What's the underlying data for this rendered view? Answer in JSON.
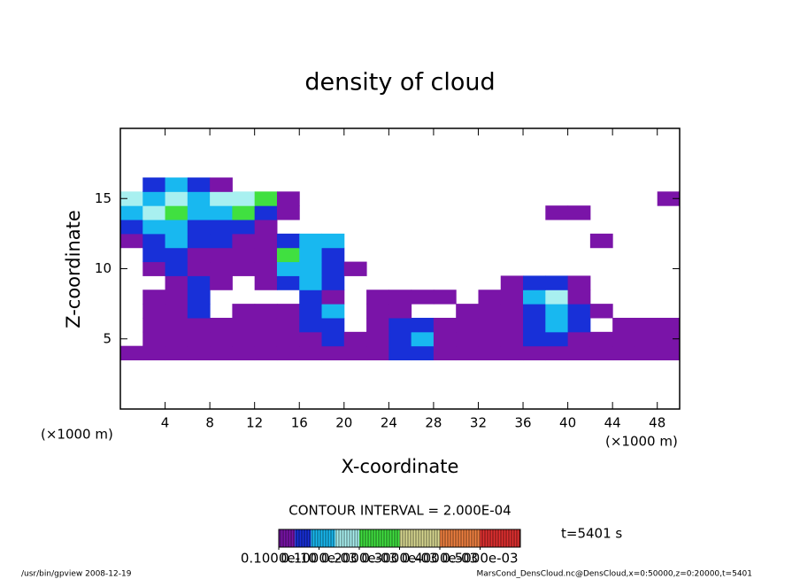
{
  "chart_data": {
    "type": "heatmap",
    "title": "density of cloud",
    "xlabel": "X-coordinate",
    "ylabel": "Z-coordinate",
    "xunit": "(×1000 m)",
    "yunit": "(×1000 m)",
    "contour_note": "CONTOUR INTERVAL = 2.000E-04",
    "time_label": "t=5401 s",
    "footer_left": "/usr/bin/gpview   2008-12-19",
    "footer_right": "MarsCond_DensCloud.nc@DensCloud,x=0:50000,z=0:20000,t=5401",
    "xlim": [
      0,
      50
    ],
    "ylim": [
      0,
      20
    ],
    "xticks": [
      4,
      8,
      12,
      16,
      20,
      24,
      28,
      32,
      36,
      40,
      44,
      48
    ],
    "yticks": [
      5,
      10,
      15
    ],
    "x": [
      1,
      3,
      5,
      7,
      9,
      11,
      13,
      15,
      17,
      19,
      21,
      23,
      25,
      27,
      29,
      31,
      33,
      35,
      37,
      39,
      41,
      43,
      45,
      47,
      49
    ],
    "y": [
      4,
      5,
      6,
      7,
      8,
      9,
      10,
      11,
      12,
      13,
      14,
      15,
      16
    ],
    "cell_size": [
      2,
      1
    ],
    "values": [
      [
        2e-05,
        2e-05,
        2e-05,
        2e-05,
        2e-05,
        2e-05,
        2e-05,
        2e-05,
        2e-05,
        2e-05,
        2e-05,
        2e-05,
        6e-05,
        6e-05,
        2e-05,
        2e-05,
        2e-05,
        2e-05,
        2e-05,
        2e-05,
        2e-05,
        2e-05,
        2e-05,
        2e-05,
        2e-05
      ],
      [
        null,
        2e-05,
        2e-05,
        2e-05,
        2e-05,
        2e-05,
        2e-05,
        2e-05,
        2e-05,
        6e-05,
        2e-05,
        2e-05,
        6e-05,
        0.00012,
        2e-05,
        2e-05,
        2e-05,
        2e-05,
        6e-05,
        6e-05,
        2e-05,
        2e-05,
        2e-05,
        2e-05,
        2e-05
      ],
      [
        null,
        2e-05,
        2e-05,
        2e-05,
        2e-05,
        2e-05,
        2e-05,
        2e-05,
        6e-05,
        6e-05,
        null,
        2e-05,
        6e-05,
        6e-05,
        2e-05,
        2e-05,
        2e-05,
        2e-05,
        6e-05,
        0.00012,
        6e-05,
        null,
        2e-05,
        2e-05,
        2e-05
      ],
      [
        null,
        2e-05,
        2e-05,
        6e-05,
        null,
        2e-05,
        2e-05,
        2e-05,
        6e-05,
        0.00012,
        null,
        2e-05,
        2e-05,
        null,
        null,
        2e-05,
        2e-05,
        2e-05,
        6e-05,
        0.00012,
        6e-05,
        2e-05,
        null,
        null,
        null
      ],
      [
        null,
        2e-05,
        2e-05,
        6e-05,
        null,
        null,
        null,
        null,
        6e-05,
        2e-05,
        null,
        2e-05,
        2e-05,
        2e-05,
        2e-05,
        null,
        2e-05,
        2e-05,
        0.00012,
        0.00016,
        2e-05,
        null,
        null,
        null,
        null
      ],
      [
        null,
        null,
        2e-05,
        6e-05,
        2e-05,
        null,
        2e-05,
        6e-05,
        0.00012,
        6e-05,
        null,
        null,
        null,
        null,
        null,
        null,
        null,
        2e-05,
        6e-05,
        6e-05,
        2e-05,
        null,
        null,
        null,
        null
      ],
      [
        null,
        2e-05,
        6e-05,
        2e-05,
        2e-05,
        2e-05,
        2e-05,
        0.00012,
        0.00012,
        6e-05,
        2e-05,
        null,
        null,
        null,
        null,
        null,
        null,
        null,
        null,
        null,
        null,
        null,
        null,
        null,
        null
      ],
      [
        null,
        6e-05,
        6e-05,
        2e-05,
        2e-05,
        2e-05,
        2e-05,
        0.00022,
        0.00012,
        6e-05,
        null,
        null,
        null,
        null,
        null,
        null,
        null,
        null,
        null,
        null,
        null,
        null,
        null,
        null,
        null
      ],
      [
        2e-05,
        6e-05,
        0.00012,
        6e-05,
        6e-05,
        2e-05,
        2e-05,
        6e-05,
        0.00012,
        0.00012,
        null,
        null,
        null,
        null,
        null,
        null,
        null,
        null,
        null,
        null,
        null,
        2e-05,
        null,
        null,
        null
      ],
      [
        6e-05,
        0.00012,
        0.00012,
        6e-05,
        6e-05,
        6e-05,
        2e-05,
        null,
        null,
        null,
        null,
        null,
        null,
        null,
        null,
        null,
        null,
        null,
        null,
        null,
        null,
        null,
        null,
        null,
        null
      ],
      [
        0.00012,
        0.00016,
        0.00022,
        0.00012,
        0.00012,
        0.00022,
        6e-05,
        2e-05,
        null,
        null,
        null,
        null,
        null,
        null,
        null,
        null,
        null,
        null,
        null,
        2e-05,
        2e-05,
        null,
        null,
        null,
        null
      ],
      [
        0.00016,
        0.00012,
        0.00016,
        0.00012,
        0.00016,
        0.00016,
        0.00022,
        2e-05,
        null,
        null,
        null,
        null,
        null,
        null,
        null,
        null,
        null,
        null,
        null,
        null,
        null,
        null,
        null,
        null,
        2e-05
      ],
      [
        null,
        6e-05,
        0.00012,
        6e-05,
        2e-05,
        null,
        null,
        null,
        null,
        null,
        null,
        null,
        null,
        null,
        null,
        null,
        null,
        null,
        null,
        null,
        null,
        null,
        null,
        null,
        null
      ]
    ],
    "color_levels": [
      0,
      4e-05,
      8e-05,
      0.00014,
      0.0002,
      0.0003,
      0.0004,
      0.0005
    ],
    "colors": [
      "#7a14a8",
      "#1830d8",
      "#18b8f0",
      "#a8f0f0",
      "#40e040",
      "#d8d890",
      "#f08040",
      "#e03030"
    ],
    "colorbar_lim": [
      0,
      0.0006
    ],
    "colorbar_ticks": [
      {
        "value": 1e-11,
        "label": "0.1000e-10"
      },
      {
        "value": 0.0001,
        "label": "0.1000e-03"
      },
      {
        "value": 0.0002,
        "label": "0.2000e-03"
      },
      {
        "value": 0.0003,
        "label": "0.3000e-03"
      },
      {
        "value": 0.0004,
        "label": "0.4000e-03"
      },
      {
        "value": 0.0005,
        "label": "0.5000e-03"
      }
    ]
  }
}
